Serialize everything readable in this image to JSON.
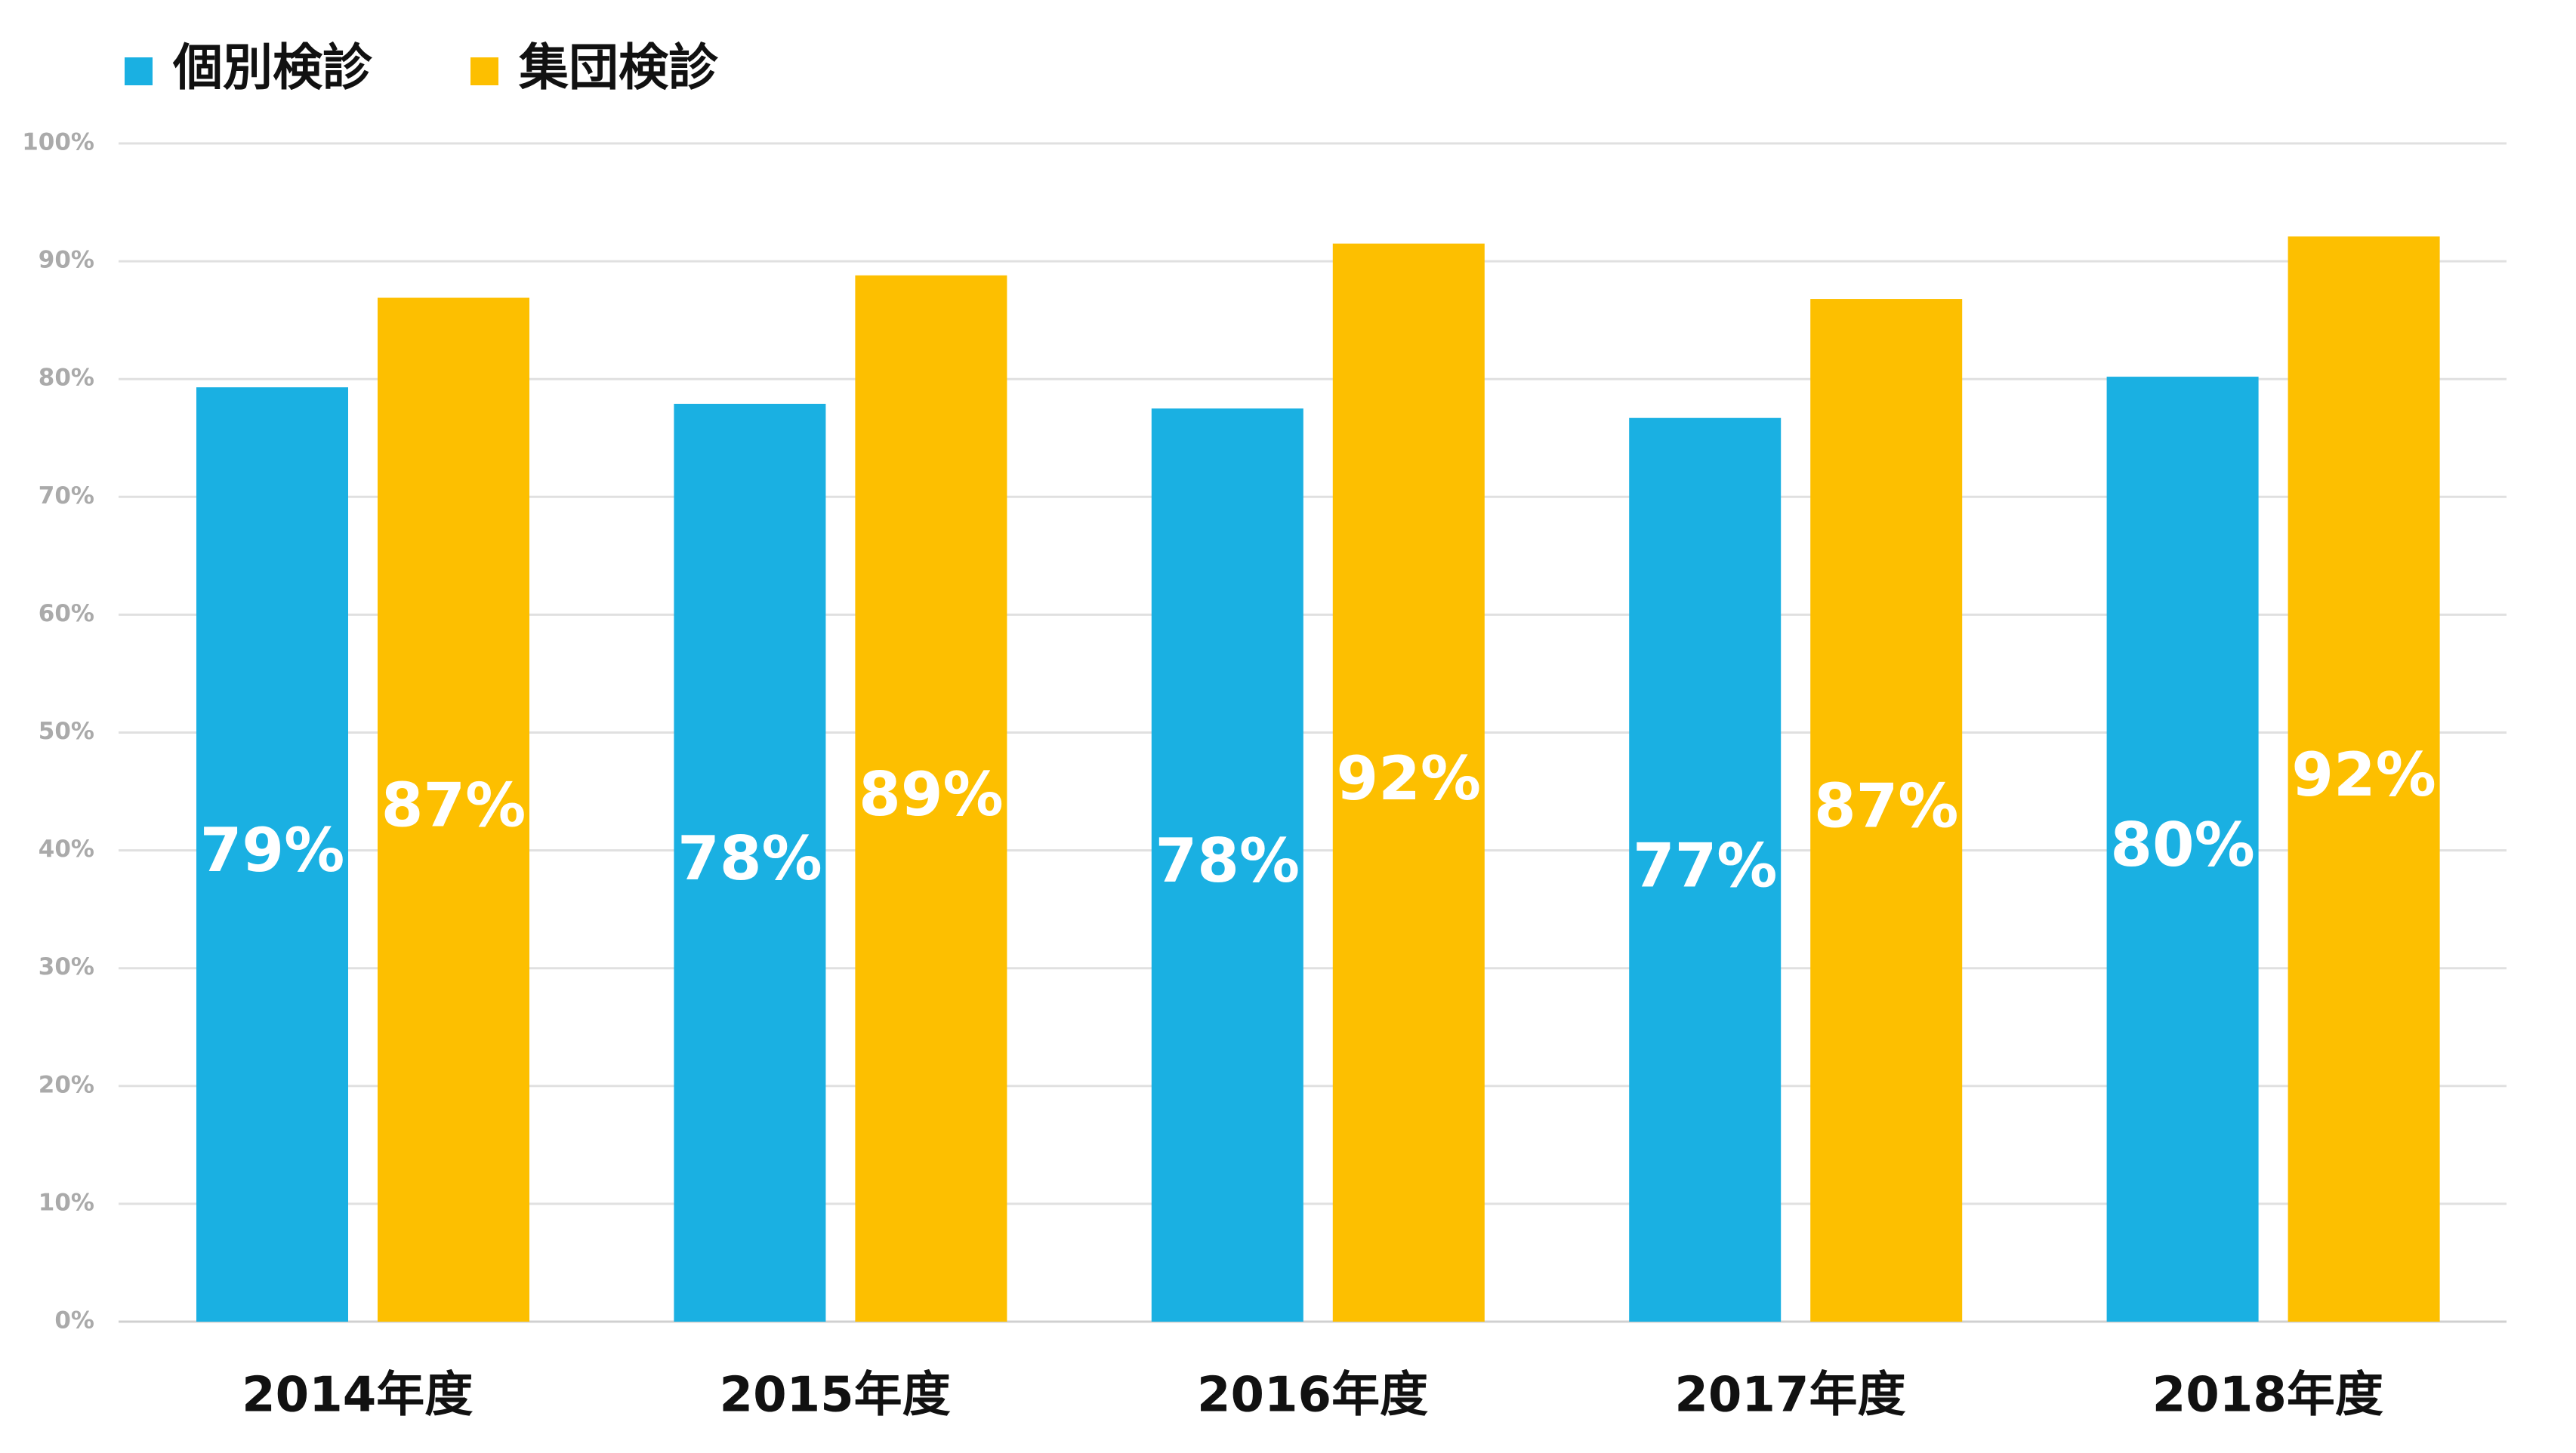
{
  "chart_data": {
    "type": "bar",
    "categories": [
      "2014年度",
      "2015年度",
      "2016年度",
      "2017年度",
      "2018年度"
    ],
    "series": [
      {
        "name": "個別検診",
        "color": "#1ab0e2",
        "values": [
          79.3,
          77.9,
          77.5,
          76.7,
          80.2
        ],
        "value_labels": [
          "79%",
          "78%",
          "78%",
          "77%",
          "80%"
        ]
      },
      {
        "name": "集団検診",
        "color": "#fdbf00",
        "values": [
          86.9,
          88.8,
          91.5,
          86.8,
          92.1
        ],
        "value_labels": [
          "87%",
          "89%",
          "92%",
          "87%",
          "92%"
        ]
      }
    ],
    "ylim": [
      0,
      100
    ],
    "yticks": [
      {
        "value": 0,
        "label": "0%"
      },
      {
        "value": 10,
        "label": "10%"
      },
      {
        "value": 20,
        "label": "20%"
      },
      {
        "value": 30,
        "label": "30%"
      },
      {
        "value": 40,
        "label": "40%"
      },
      {
        "value": 50,
        "label": "50%"
      },
      {
        "value": 60,
        "label": "60%"
      },
      {
        "value": 70,
        "label": "70%"
      },
      {
        "value": 80,
        "label": "80%"
      },
      {
        "value": 90,
        "label": "90%"
      },
      {
        "value": 100,
        "label": "100%"
      }
    ],
    "grid": true,
    "legend": "top-left"
  }
}
